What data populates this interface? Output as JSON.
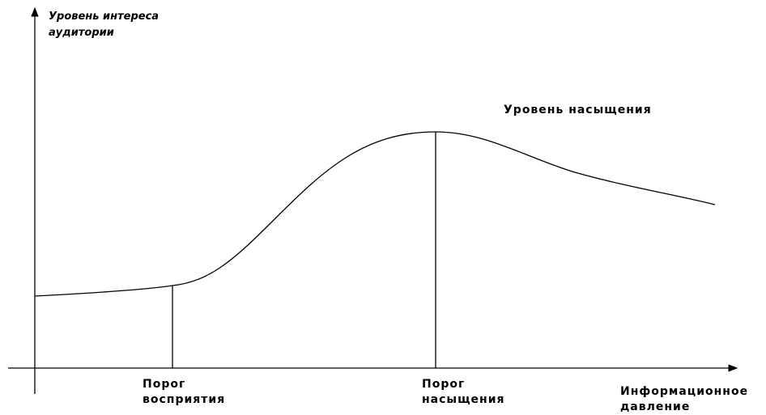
{
  "y_axis_label": [
    "Уровень интереса",
    "аудитории"
  ],
  "saturation_level": "Уровень насыщения",
  "perception_threshold": [
    "Порог",
    "восприятия"
  ],
  "saturation_threshold": [
    "Порог",
    "насыщения"
  ],
  "x_axis_label": [
    "Информационное",
    "давление"
  ]
}
